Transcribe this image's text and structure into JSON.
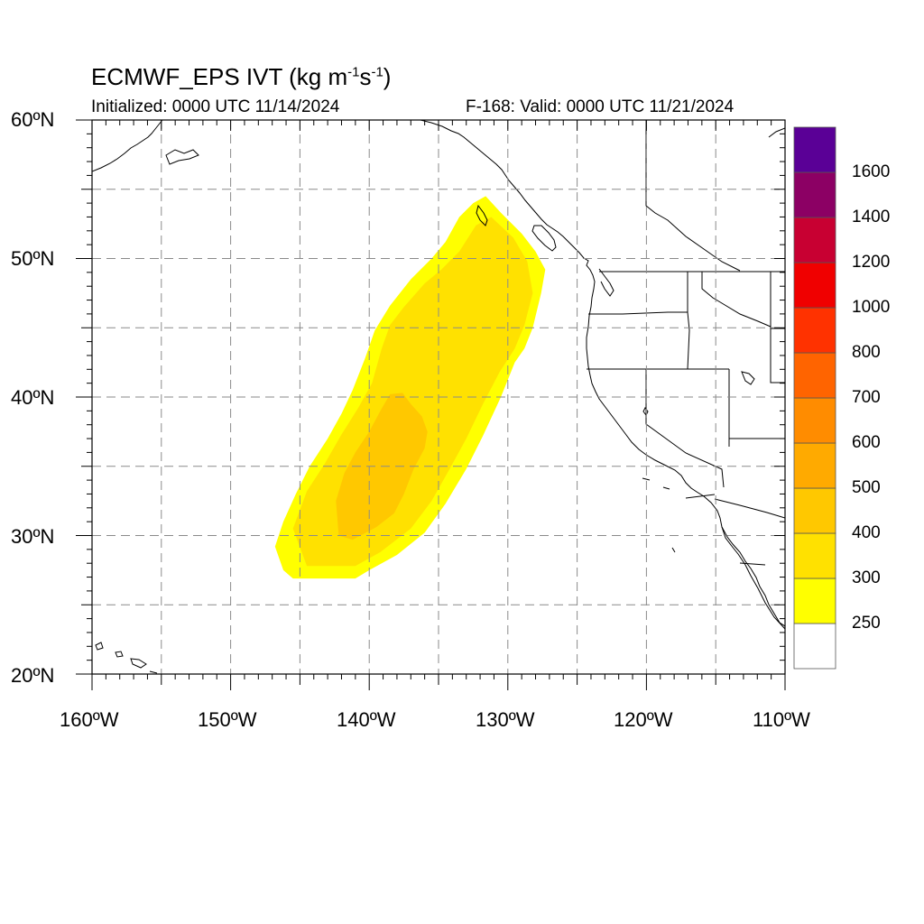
{
  "title": {
    "main": "ECMWF_EPS IVT (kg m",
    "sup1": "-1",
    "mid": "s",
    "sup2": "-1",
    "end": ")"
  },
  "subtitle": {
    "left": "Initialized: 0000 UTC 11/14/2024",
    "right": "F-168: Valid: 0000 UTC 11/21/2024"
  },
  "map": {
    "lon_range": [
      -160,
      -110
    ],
    "lat_range": [
      20,
      60
    ],
    "lat_labels": [
      "60ºN",
      "50ºN",
      "40ºN",
      "30ºN",
      "20ºN"
    ],
    "lon_labels": [
      "160ºW",
      "150ºW",
      "140ºW",
      "130ºW",
      "120ºW",
      "110ºW"
    ],
    "grid": true
  },
  "colorbar": {
    "levels": [
      "250",
      "300",
      "400",
      "500",
      "600",
      "700",
      "800",
      "1000",
      "1200",
      "1400",
      "1600"
    ],
    "colors": [
      "#ffffff",
      "#ffff00",
      "#ffe100",
      "#ffc800",
      "#ffaa00",
      "#ff8c00",
      "#ff6400",
      "#ff3200",
      "#f00000",
      "#c80032",
      "#8c0064",
      "#5a0096"
    ]
  },
  "chart_data": {
    "type": "heatmap",
    "variable": "IVT",
    "fields": [
      {
        "name": "plume-250-300",
        "color": "#ffff00",
        "polygon_lonlat": [
          [
            -146.8,
            29.2
          ],
          [
            -146.2,
            27.5
          ],
          [
            -145.5,
            26.9
          ],
          [
            -141,
            26.9
          ],
          [
            -140,
            27.5
          ],
          [
            -138,
            28.6
          ],
          [
            -136,
            30.2
          ],
          [
            -134.5,
            32.3
          ],
          [
            -133,
            34.8
          ],
          [
            -131.8,
            37.2
          ],
          [
            -130.5,
            40
          ],
          [
            -129.5,
            42.5
          ],
          [
            -128.8,
            43.5
          ],
          [
            -128.2,
            45
          ],
          [
            -127.6,
            47.5
          ],
          [
            -127.3,
            49.2
          ],
          [
            -128,
            50.5
          ],
          [
            -129,
            51.8
          ],
          [
            -130.5,
            53.3
          ],
          [
            -131.6,
            54.5
          ],
          [
            -132.5,
            54
          ],
          [
            -133.5,
            53
          ],
          [
            -134.5,
            51.2
          ],
          [
            -135.5,
            50
          ],
          [
            -137,
            48.5
          ],
          [
            -138.5,
            46.6
          ],
          [
            -139.6,
            44.8
          ],
          [
            -140.3,
            42.8
          ],
          [
            -141.2,
            40.5
          ],
          [
            -142,
            38.8
          ],
          [
            -143,
            37
          ],
          [
            -144.3,
            35
          ],
          [
            -145.3,
            33
          ],
          [
            -146.2,
            31
          ]
        ]
      },
      {
        "name": "plume-300-400",
        "color": "#ffe100",
        "polygon_lonlat": [
          [
            -145.5,
            30.5
          ],
          [
            -144.5,
            27.8
          ],
          [
            -141,
            27.8
          ],
          [
            -139.2,
            28.8
          ],
          [
            -137,
            30.5
          ],
          [
            -135.5,
            32.5
          ],
          [
            -134.2,
            34.8
          ],
          [
            -133,
            37
          ],
          [
            -131.8,
            39.5
          ],
          [
            -130.6,
            41.8
          ],
          [
            -129.5,
            43.5
          ],
          [
            -128.8,
            45.2
          ],
          [
            -128.2,
            47.5
          ],
          [
            -128.6,
            49.8
          ],
          [
            -129.6,
            51.5
          ],
          [
            -131.2,
            53
          ],
          [
            -132.3,
            52.4
          ],
          [
            -133.5,
            50.5
          ],
          [
            -134.8,
            49.2
          ],
          [
            -136,
            48.2
          ],
          [
            -137.5,
            46.5
          ],
          [
            -138.5,
            45.2
          ],
          [
            -139.1,
            43.5
          ],
          [
            -139.8,
            41
          ],
          [
            -140.8,
            39.2
          ],
          [
            -142,
            37.3
          ],
          [
            -143.2,
            35.2
          ],
          [
            -144.5,
            33.2
          ]
        ]
      },
      {
        "name": "plume-400-500",
        "color": "#ffc800",
        "polygon_lonlat": [
          [
            -142.2,
            30
          ],
          [
            -141.2,
            29.7
          ],
          [
            -139.5,
            30.6
          ],
          [
            -138.2,
            31.6
          ],
          [
            -137.5,
            33
          ],
          [
            -136.8,
            34.8
          ],
          [
            -136,
            36.3
          ],
          [
            -135.8,
            37.5
          ],
          [
            -136.2,
            38.6
          ],
          [
            -137,
            39.5
          ],
          [
            -137.6,
            40.3
          ],
          [
            -138.5,
            40.2
          ],
          [
            -139.2,
            39
          ],
          [
            -140,
            37.5
          ],
          [
            -141,
            36
          ],
          [
            -141.8,
            34.5
          ],
          [
            -142.4,
            32.5
          ]
        ]
      }
    ]
  }
}
